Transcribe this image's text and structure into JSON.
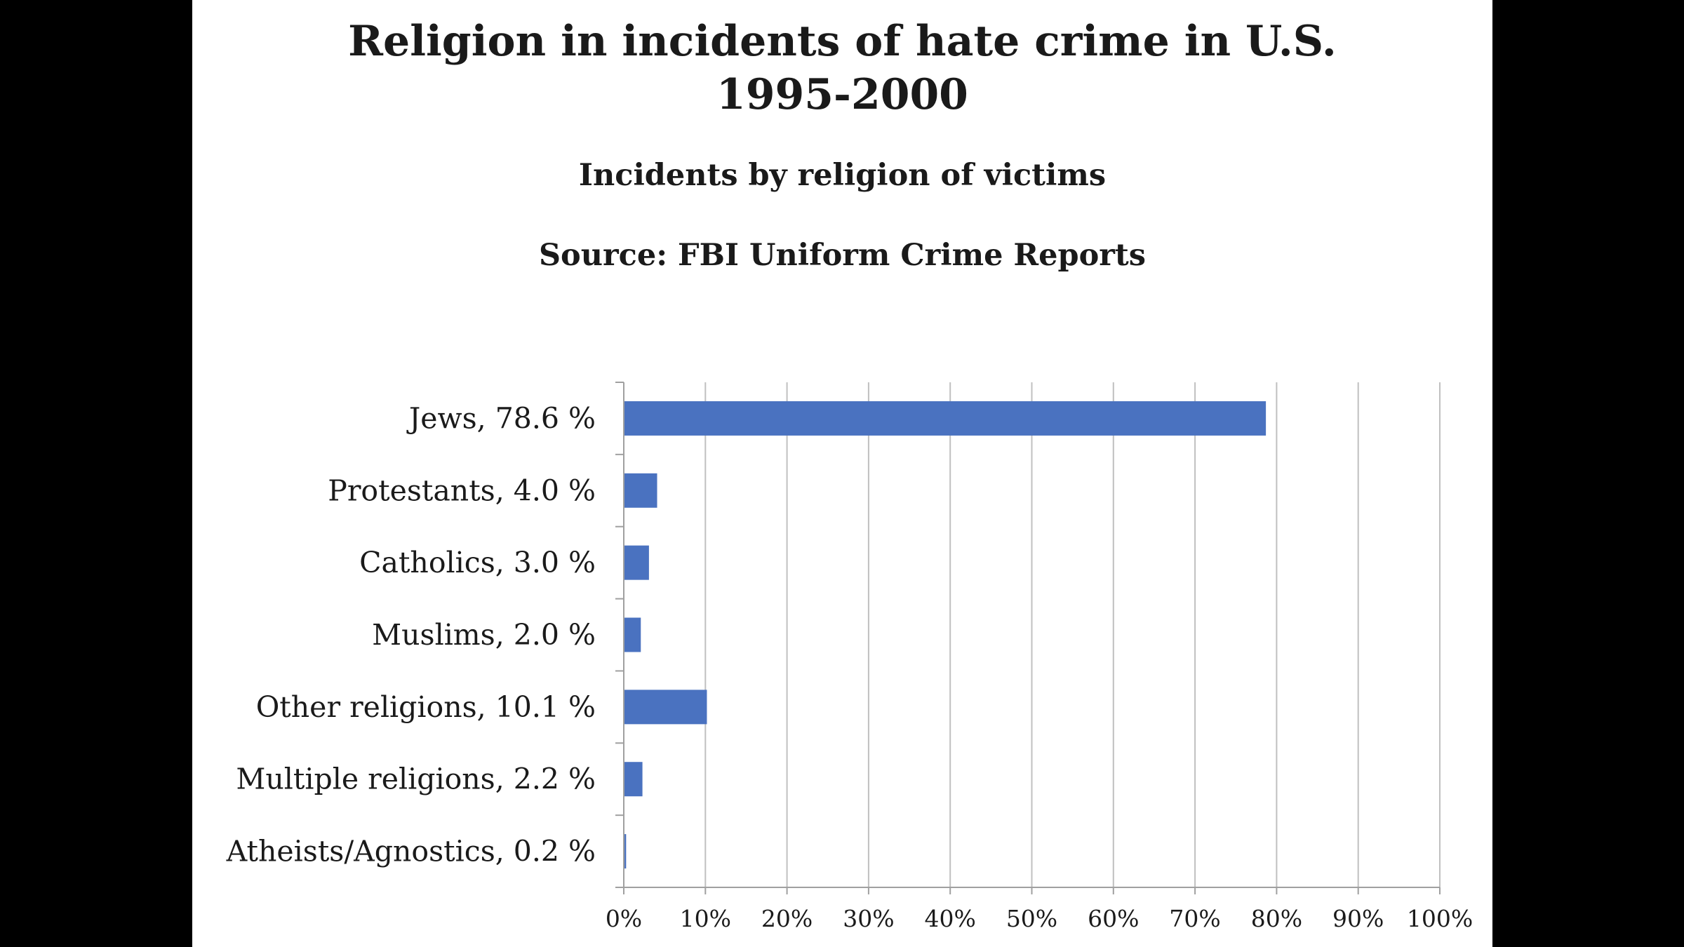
{
  "chart_data": {
    "type": "bar",
    "orientation": "horizontal",
    "title": "Religion in incidents of hate crime in U.S.",
    "title_line2": "1995-2000",
    "subtitle": "Incidents by religion of victims",
    "source": "Source: FBI Uniform Crime Reports",
    "categories": [
      "Jews, 78.6 %",
      "Protestants, 4.0 %",
      "Catholics, 3.0 %",
      "Muslims, 2.0 %",
      "Other religions, 10.1 %",
      "Multiple religions, 2.2 %",
      "Atheists/Agnostics, 0.2 %"
    ],
    "values": [
      78.6,
      4.0,
      3.0,
      2.0,
      10.1,
      2.2,
      0.2
    ],
    "xlim": [
      0,
      100
    ],
    "xticks": [
      "0%",
      "10%",
      "20%",
      "30%",
      "40%",
      "50%",
      "60%",
      "70%",
      "80%",
      "90%",
      "100%"
    ],
    "grid": "vertical",
    "legend": "none",
    "bar_color": "#4a72c0",
    "grid_color": "#c0c0c0"
  }
}
